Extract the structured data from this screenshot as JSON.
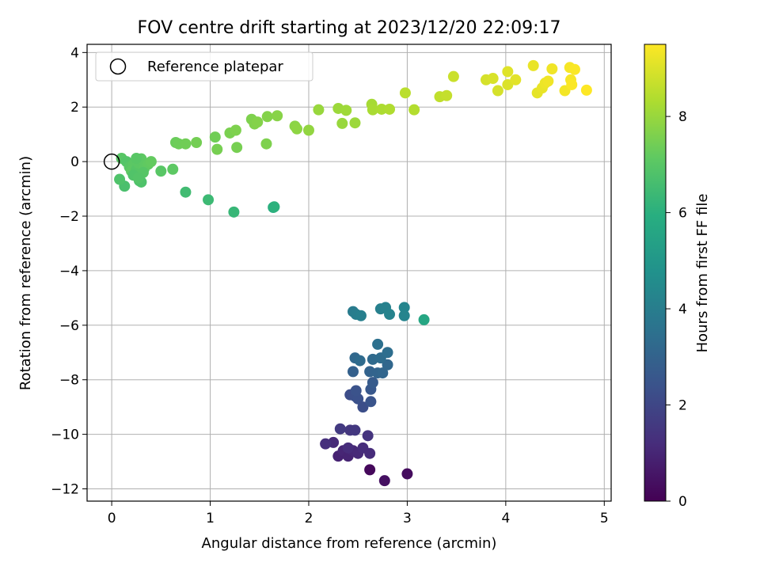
{
  "chart_data": {
    "type": "scatter",
    "title": "FOV centre drift starting at 2023/12/20 22:09:17",
    "xlabel": "Angular distance from reference (arcmin)",
    "ylabel": "Rotation from reference (arcmin)",
    "xlim": [
      -0.25,
      5.07
    ],
    "ylim": [
      -12.45,
      4.3
    ],
    "xticks": [
      0,
      1,
      2,
      3,
      4,
      5
    ],
    "yticks": [
      -12,
      -10,
      -8,
      -6,
      -4,
      -2,
      0,
      2,
      4
    ],
    "grid": true,
    "colormap": "viridis",
    "colorbar": {
      "label": "Hours from first FF file",
      "range": [
        0,
        9.5
      ],
      "ticks": [
        0,
        2,
        4,
        6,
        8
      ]
    },
    "legend": {
      "position": "top-left",
      "entries": [
        {
          "label": "Reference platepar",
          "marker": "open-circle"
        }
      ]
    },
    "reference_point": {
      "x": 0,
      "y": 0
    },
    "points": [
      [
        2.62,
        -11.3,
        0.2
      ],
      [
        2.77,
        -11.7,
        0.4
      ],
      [
        3.0,
        -11.45,
        0.3
      ],
      [
        2.25,
        -10.3,
        1.1
      ],
      [
        2.3,
        -10.8,
        0.9
      ],
      [
        2.35,
        -10.6,
        1.0
      ],
      [
        2.4,
        -10.8,
        0.95
      ],
      [
        2.45,
        -10.6,
        1.05
      ],
      [
        2.5,
        -10.7,
        1.1
      ],
      [
        2.55,
        -10.5,
        1.2
      ],
      [
        2.62,
        -10.7,
        1.15
      ],
      [
        2.17,
        -10.35,
        1.25
      ],
      [
        2.4,
        -10.5,
        1.2
      ],
      [
        2.6,
        -10.05,
        1.4
      ],
      [
        2.42,
        -9.85,
        1.5
      ],
      [
        2.47,
        -9.85,
        1.55
      ],
      [
        2.32,
        -9.8,
        1.6
      ],
      [
        2.42,
        -8.55,
        2.2
      ],
      [
        2.47,
        -8.6,
        2.3
      ],
      [
        2.5,
        -8.7,
        2.35
      ],
      [
        2.48,
        -8.4,
        2.4
      ],
      [
        2.55,
        -9.0,
        2.25
      ],
      [
        2.63,
        -8.8,
        2.45
      ],
      [
        2.63,
        -8.35,
        2.6
      ],
      [
        2.65,
        -8.1,
        2.7
      ],
      [
        2.45,
        -7.7,
        2.9
      ],
      [
        2.62,
        -7.7,
        3.0
      ],
      [
        2.7,
        -7.75,
        3.05
      ],
      [
        2.75,
        -7.75,
        3.1
      ],
      [
        2.8,
        -7.45,
        3.15
      ],
      [
        2.47,
        -7.2,
        3.2
      ],
      [
        2.52,
        -7.3,
        3.3
      ],
      [
        2.65,
        -7.25,
        3.25
      ],
      [
        2.73,
        -7.2,
        3.35
      ],
      [
        2.8,
        -7.0,
        3.4
      ],
      [
        2.7,
        -6.7,
        3.5
      ],
      [
        2.45,
        -5.5,
        3.9
      ],
      [
        2.48,
        -5.6,
        4.0
      ],
      [
        2.53,
        -5.65,
        4.05
      ],
      [
        2.73,
        -5.4,
        4.1
      ],
      [
        2.78,
        -5.35,
        4.15
      ],
      [
        2.82,
        -5.6,
        4.2
      ],
      [
        2.97,
        -5.35,
        4.3
      ],
      [
        2.97,
        -5.65,
        4.25
      ],
      [
        3.17,
        -5.8,
        5.6
      ],
      [
        1.64,
        -1.68,
        5.95
      ],
      [
        1.65,
        -1.66,
        6.05
      ],
      [
        1.24,
        -1.85,
        6.3
      ],
      [
        0.98,
        -1.4,
        6.4
      ],
      [
        0.75,
        -1.12,
        6.5
      ],
      [
        0.13,
        -0.9,
        6.7
      ],
      [
        0.08,
        -0.65,
        6.8
      ],
      [
        0.28,
        -0.7,
        6.75
      ],
      [
        0.3,
        -0.75,
        6.8
      ],
      [
        0.1,
        0.12,
        7.0
      ],
      [
        0.15,
        0.0,
        6.9
      ],
      [
        0.18,
        -0.2,
        7.0
      ],
      [
        0.22,
        -0.1,
        7.05
      ],
      [
        0.2,
        -0.35,
        7.1
      ],
      [
        0.25,
        -0.3,
        6.95
      ],
      [
        0.27,
        -0.05,
        7.05
      ],
      [
        0.3,
        0.1,
        7.1
      ],
      [
        0.25,
        0.12,
        7.0
      ],
      [
        0.33,
        -0.25,
        7.1
      ],
      [
        0.37,
        -0.1,
        7.15
      ],
      [
        0.4,
        0.0,
        7.2
      ],
      [
        0.5,
        -0.35,
        7.0
      ],
      [
        0.62,
        -0.28,
        7.1
      ],
      [
        0.22,
        -0.5,
        6.85
      ],
      [
        0.32,
        -0.4,
        6.95
      ],
      [
        0.27,
        -0.6,
        6.9
      ],
      [
        0.65,
        0.7,
        7.3
      ],
      [
        0.68,
        0.65,
        7.35
      ],
      [
        0.75,
        0.65,
        7.4
      ],
      [
        0.86,
        0.7,
        7.45
      ],
      [
        1.05,
        0.9,
        7.4
      ],
      [
        1.07,
        0.45,
        7.5
      ],
      [
        1.2,
        1.05,
        7.55
      ],
      [
        1.26,
        1.15,
        7.6
      ],
      [
        1.27,
        0.52,
        7.5
      ],
      [
        1.42,
        1.55,
        7.6
      ],
      [
        1.45,
        1.38,
        7.65
      ],
      [
        1.48,
        1.45,
        7.7
      ],
      [
        1.57,
        0.65,
        7.6
      ],
      [
        1.58,
        1.65,
        7.7
      ],
      [
        1.68,
        1.68,
        7.75
      ],
      [
        1.86,
        1.3,
        7.8
      ],
      [
        1.88,
        1.2,
        7.85
      ],
      [
        2.0,
        1.15,
        7.9
      ],
      [
        2.1,
        1.9,
        8.0
      ],
      [
        2.3,
        1.95,
        8.05
      ],
      [
        2.34,
        1.4,
        8.0
      ],
      [
        2.38,
        1.88,
        8.1
      ],
      [
        2.47,
        1.42,
        8.05
      ],
      [
        2.64,
        2.1,
        8.2
      ],
      [
        2.65,
        1.9,
        8.25
      ],
      [
        2.74,
        1.92,
        8.3
      ],
      [
        2.82,
        1.92,
        8.35
      ],
      [
        2.98,
        2.52,
        8.5
      ],
      [
        3.07,
        1.9,
        8.4
      ],
      [
        3.33,
        2.38,
        8.6
      ],
      [
        3.4,
        2.42,
        8.65
      ],
      [
        3.47,
        3.12,
        8.75
      ],
      [
        3.8,
        3.0,
        8.9
      ],
      [
        3.87,
        3.05,
        8.95
      ],
      [
        3.92,
        2.6,
        8.9
      ],
      [
        4.02,
        3.3,
        9.05
      ],
      [
        4.02,
        2.82,
        9.0
      ],
      [
        4.1,
        3.0,
        9.1
      ],
      [
        4.28,
        3.52,
        9.2
      ],
      [
        4.32,
        2.52,
        9.15
      ],
      [
        4.37,
        2.7,
        9.2
      ],
      [
        4.4,
        2.88,
        9.25
      ],
      [
        4.43,
        2.95,
        9.3
      ],
      [
        4.47,
        3.4,
        9.3
      ],
      [
        4.6,
        2.6,
        9.35
      ],
      [
        4.65,
        3.45,
        9.4
      ],
      [
        4.66,
        3.0,
        9.4
      ],
      [
        4.67,
        2.82,
        9.45
      ],
      [
        4.7,
        3.38,
        9.45
      ],
      [
        4.82,
        2.62,
        9.5
      ]
    ]
  }
}
